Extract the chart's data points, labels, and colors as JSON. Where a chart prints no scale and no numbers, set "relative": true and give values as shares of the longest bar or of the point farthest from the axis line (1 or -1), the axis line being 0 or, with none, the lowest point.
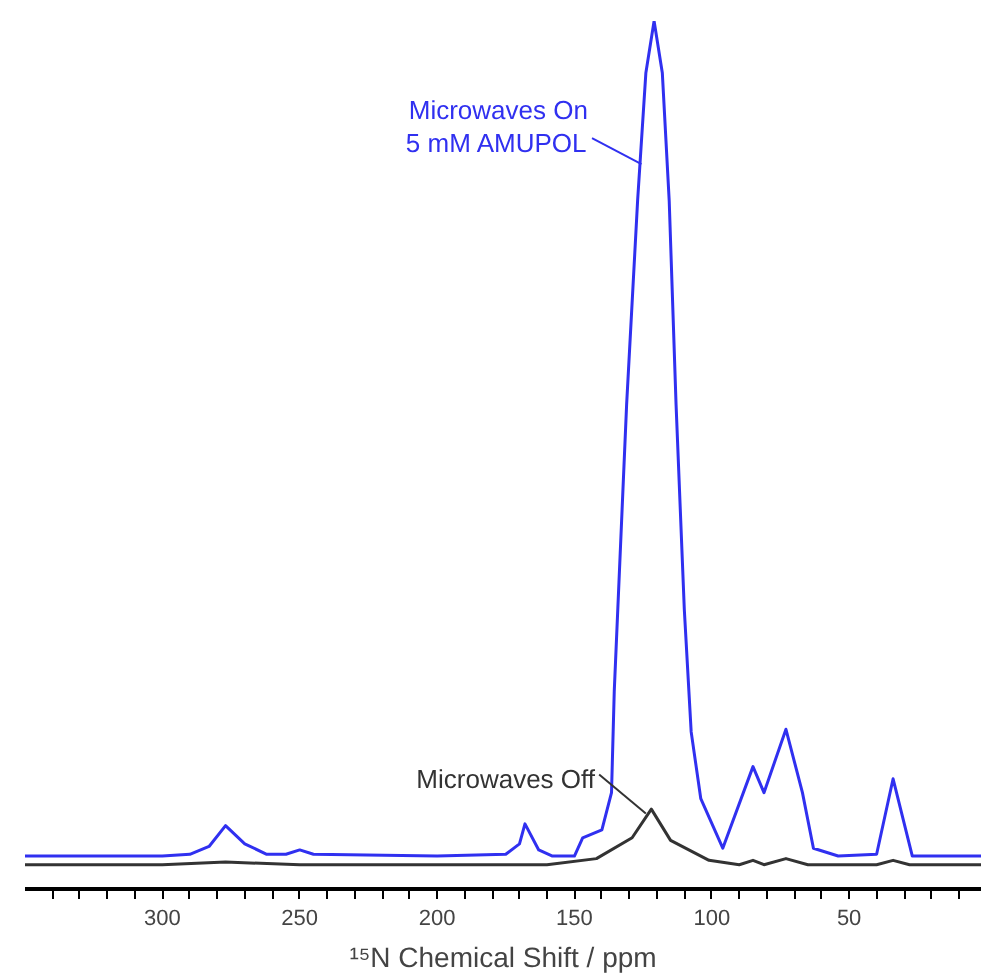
{
  "chart_data": {
    "type": "line",
    "relative": true,
    "xlabel": "¹⁵N Chemical Shift / ppm",
    "xlim": [
      350,
      2
    ],
    "xticks": [
      {
        "value": 340,
        "label": null
      },
      {
        "value": 330,
        "label": null
      },
      {
        "value": 320,
        "label": null
      },
      {
        "value": 310,
        "label": null
      },
      300,
      {
        "value": 290,
        "label": null
      },
      {
        "value": 280,
        "label": null
      },
      {
        "value": 270,
        "label": null
      },
      {
        "value": 260,
        "label": null
      },
      250,
      {
        "value": 240,
        "label": null
      },
      {
        "value": 230,
        "label": null
      },
      {
        "value": 220,
        "label": null
      },
      {
        "value": 210,
        "label": null
      },
      200,
      {
        "value": 190,
        "label": null
      },
      {
        "value": 180,
        "label": null
      },
      {
        "value": 170,
        "label": null
      },
      {
        "value": 160,
        "label": null
      },
      150,
      {
        "value": 140,
        "label": null
      },
      {
        "value": 130,
        "label": null
      },
      {
        "value": 120,
        "label": null
      },
      {
        "value": 110,
        "label": null
      },
      100,
      {
        "value": 90,
        "label": null
      },
      {
        "value": 80,
        "label": null
      },
      {
        "value": 70,
        "label": null
      },
      {
        "value": 60,
        "label": null
      },
      50,
      {
        "value": 40,
        "label": null
      },
      {
        "value": 30,
        "label": null
      },
      {
        "value": 20,
        "label": null
      },
      {
        "value": 10,
        "label": null
      }
    ],
    "tick_labels": "x",
    "grid": false,
    "marker": "none",
    "line_style": "solid",
    "series": [
      {
        "color": "#3030f0",
        "x": [
          350,
          300,
          290,
          283,
          277,
          270,
          262,
          255,
          250,
          245,
          200,
          175,
          170,
          168,
          163,
          158,
          150,
          147,
          140,
          136.5,
          135.5,
          131,
          127,
          124,
          121,
          118,
          115.5,
          113,
          110,
          107.5,
          104,
          96,
          85,
          81,
          73,
          67,
          63,
          54,
          40,
          34,
          27,
          2
        ],
        "values": [
          0.038,
          0.038,
          0.04,
          0.049,
          0.073,
          0.052,
          0.04,
          0.04,
          0.045,
          0.04,
          0.038,
          0.04,
          0.052,
          0.075,
          0.045,
          0.038,
          0.038,
          0.059,
          0.068,
          0.111,
          0.228,
          0.558,
          0.793,
          0.94,
          1,
          0.94,
          0.793,
          0.558,
          0.322,
          0.181,
          0.104,
          0.047,
          0.141,
          0.111,
          0.184,
          0.111,
          0.047,
          0.038,
          0.04,
          0.127,
          0.038,
          0.038
        ]
      },
      {
        "color": "#333333",
        "x": [
          350,
          300,
          277,
          250,
          160,
          142,
          129,
          122,
          115,
          101,
          90,
          85,
          81,
          73,
          65,
          40,
          34,
          28,
          2
        ],
        "values": [
          0.028,
          0.028,
          0.031,
          0.028,
          0.028,
          0.035,
          0.059,
          0.092,
          0.056,
          0.033,
          0.028,
          0.033,
          0.028,
          0.035,
          0.028,
          0.028,
          0.033,
          0.028,
          0.028
        ]
      }
    ],
    "annotations": [
      {
        "text": "Microwaves On\n5 mM AMUPOL",
        "x": 125.6,
        "y": 0.835
      },
      {
        "text": "Microwaves Off",
        "x": 124,
        "y": 0.087
      }
    ]
  }
}
